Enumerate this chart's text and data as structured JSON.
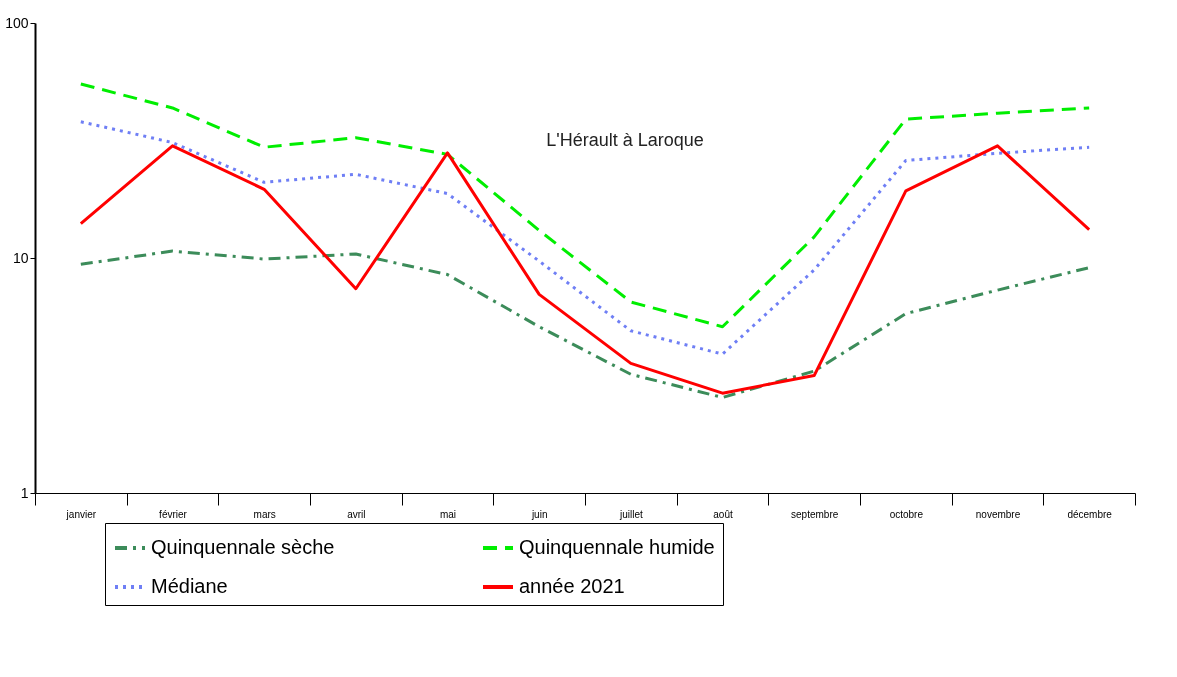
{
  "chart_data": {
    "type": "line",
    "annotations": [
      "L'Hérault à Laroque"
    ],
    "categories": [
      "janvier",
      "février",
      "mars",
      "avril",
      "mai",
      "juin",
      "juillet",
      "août",
      "septembre",
      "octobre",
      "novembre",
      "décembre"
    ],
    "log": "y",
    "ylim": [
      1,
      100
    ],
    "yticks": [
      1,
      10,
      100
    ],
    "grid": false,
    "legend": "bottom",
    "marker": "none",
    "series": [
      {
        "name": "Quinquennale sèche",
        "color": "#3c8c5a",
        "line_style": "dashdot",
        "values": [
          9.4,
          10.7,
          9.9,
          10.4,
          8.5,
          5.1,
          3.2,
          2.55,
          3.3,
          5.8,
          7.3,
          9.1
        ]
      },
      {
        "name": "Médiane",
        "color": "#6f7ff5",
        "line_style": "dotted",
        "values": [
          38,
          31,
          21,
          22.7,
          18.8,
          9.7,
          4.9,
          3.9,
          8.9,
          26,
          27.9,
          29.6
        ]
      },
      {
        "name": "Quinquennale humide",
        "color": "#00ee00",
        "line_style": "dashed",
        "values": [
          55,
          43.5,
          29.6,
          32.5,
          27.6,
          13.1,
          6.5,
          5.1,
          12.3,
          39,
          41.3,
          43.5
        ]
      },
      {
        "name": "année 2021",
        "color": "#ff0000",
        "line_style": "solid",
        "values": [
          14,
          30,
          19.6,
          7.4,
          28,
          7,
          3.56,
          2.66,
          3.16,
          19.3,
          30,
          13.2
        ]
      }
    ]
  }
}
